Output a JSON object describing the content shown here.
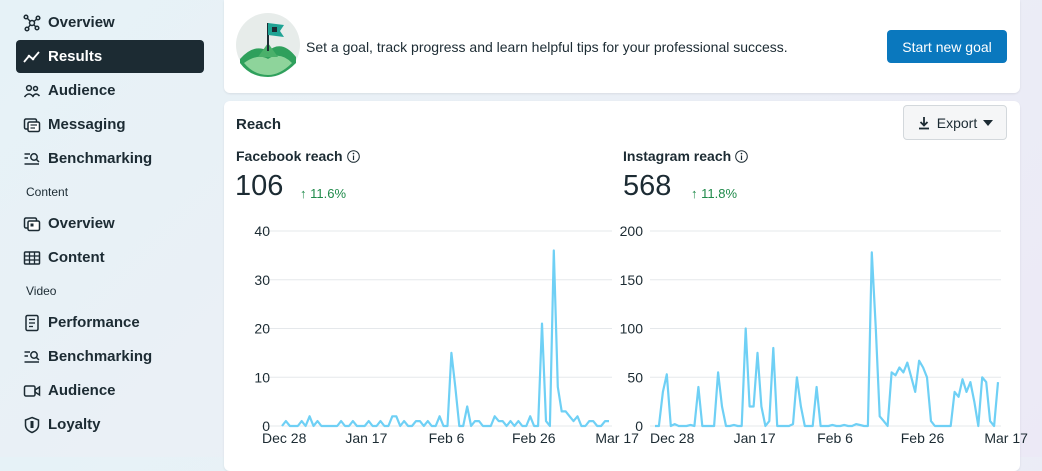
{
  "sidebar": {
    "items_top": [
      {
        "label": "Overview",
        "icon": "network-icon"
      },
      {
        "label": "Results",
        "icon": "trend-icon",
        "active": true
      },
      {
        "label": "Audience",
        "icon": "people-icon"
      },
      {
        "label": "Messaging",
        "icon": "message-icon"
      },
      {
        "label": "Benchmarking",
        "icon": "benchmark-icon"
      }
    ],
    "content_label": "Content",
    "items_content": [
      {
        "label": "Overview",
        "icon": "overview-icon"
      },
      {
        "label": "Content",
        "icon": "table-icon"
      }
    ],
    "video_label": "Video",
    "items_video": [
      {
        "label": "Performance",
        "icon": "document-icon"
      },
      {
        "label": "Benchmarking",
        "icon": "benchmark-icon"
      },
      {
        "label": "Audience",
        "icon": "video-icon"
      },
      {
        "label": "Loyalty",
        "icon": "shield-icon"
      }
    ]
  },
  "goal": {
    "text": "Set a goal, track progress and learn helpful tips for your professional success.",
    "button": "Start new goal"
  },
  "reach": {
    "title": "Reach",
    "export": "Export"
  },
  "colors": {
    "line": "#6fd0f5",
    "accent": "#0a78be",
    "positive": "#1f8a4a"
  },
  "chart_data": [
    {
      "type": "line",
      "title": "Facebook reach",
      "value": "106",
      "change": "↑ 11.6%",
      "x_ticks": [
        "Dec 28",
        "Jan 17",
        "Feb 6",
        "Feb 26",
        "Mar 17"
      ],
      "yticks": [
        0,
        10,
        20,
        30,
        40
      ],
      "ylim": [
        0,
        40
      ],
      "values": [
        0,
        1,
        0,
        0,
        0,
        1,
        0,
        2,
        0,
        1,
        0,
        0,
        0,
        0,
        0,
        1,
        0,
        0,
        1,
        0,
        0,
        0,
        1,
        0,
        0,
        1,
        0,
        0,
        2,
        2,
        0,
        1,
        0,
        0,
        1,
        1,
        0,
        1,
        0,
        0,
        2,
        0,
        0,
        15,
        8,
        0,
        0,
        4,
        0,
        1,
        1,
        0,
        0,
        0,
        2,
        1,
        1,
        0,
        1,
        0,
        1,
        0,
        0,
        2,
        0,
        0,
        21,
        1,
        0,
        36,
        8,
        3,
        3,
        2,
        1,
        2,
        0,
        0,
        1,
        1,
        0,
        0,
        1,
        1
      ]
    },
    {
      "type": "line",
      "title": "Instagram reach",
      "value": "568",
      "change": "↑ 11.8%",
      "x_ticks": [
        "Dec 28",
        "Jan 17",
        "Feb 6",
        "Feb 26",
        "Mar 17"
      ],
      "yticks": [
        0,
        50,
        100,
        150,
        200
      ],
      "ylim": [
        0,
        200
      ],
      "values": [
        0,
        0,
        35,
        53,
        0,
        2,
        0,
        0,
        0,
        1,
        0,
        40,
        0,
        0,
        0,
        0,
        55,
        20,
        0,
        0,
        1,
        0,
        0,
        100,
        20,
        20,
        75,
        20,
        0,
        5,
        80,
        0,
        0,
        0,
        0,
        2,
        50,
        20,
        0,
        0,
        0,
        40,
        0,
        0,
        0,
        1,
        0,
        0,
        1,
        0,
        0,
        2,
        1,
        0,
        0,
        178,
        100,
        10,
        5,
        0,
        55,
        52,
        60,
        55,
        65,
        50,
        35,
        67,
        60,
        50,
        5,
        0,
        0,
        0,
        0,
        0,
        35,
        30,
        48,
        35,
        45,
        25,
        0,
        50,
        45,
        5,
        0,
        45
      ]
    }
  ]
}
